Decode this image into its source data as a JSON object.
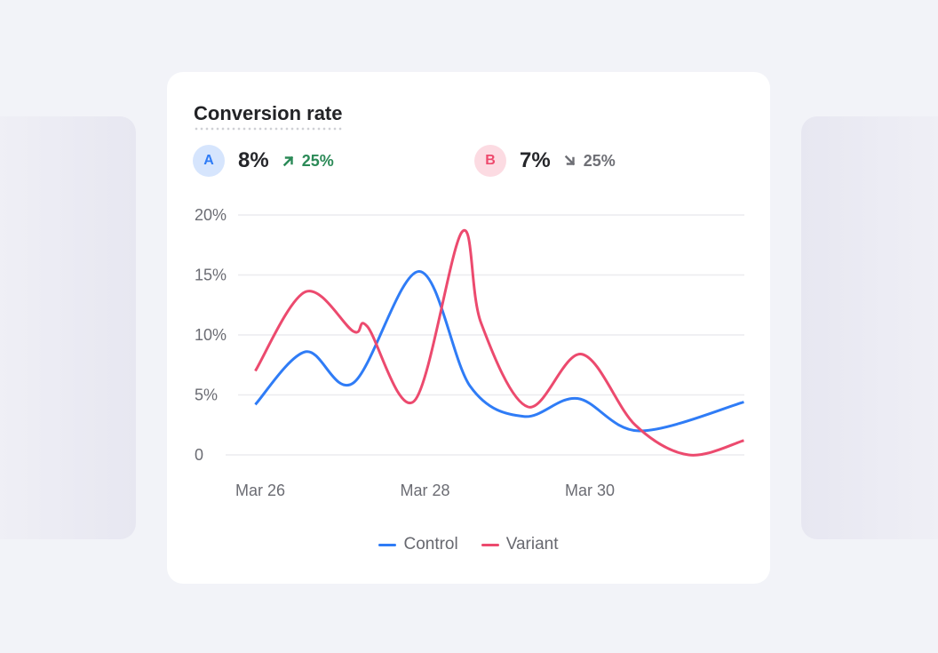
{
  "card": {
    "title": "Conversion rate",
    "metrics": [
      {
        "badge": "A",
        "value": "8%",
        "change": "25%",
        "direction": "up",
        "change_icon": "arrow-up-right-icon"
      },
      {
        "badge": "B",
        "value": "7%",
        "change": "25%",
        "direction": "down",
        "change_icon": "arrow-down-right-icon"
      }
    ]
  },
  "colors": {
    "control": "#2f7cf6",
    "variant": "#ec4a6e",
    "up": "#2b8a57",
    "down": "#6e6f75"
  },
  "chart_data": {
    "type": "line",
    "title": "Conversion rate",
    "xlabel": "",
    "ylabel": "",
    "ylim": [
      0,
      20
    ],
    "y_ticks": [
      0,
      5,
      10,
      15,
      20
    ],
    "y_tick_labels": [
      "0",
      "5%",
      "10%",
      "15%",
      "20%"
    ],
    "x_ticks": [
      0,
      2,
      4
    ],
    "x_tick_labels": [
      "Mar 26",
      "Mar 28",
      "Mar 30"
    ],
    "x_unit": "days since Mar 26",
    "grid": true,
    "legend_position": "bottom-center",
    "series": [
      {
        "name": "Control",
        "color": "#2f7cf6",
        "points": [
          [
            -0.06,
            4.2
          ],
          [
            0.55,
            8.6
          ],
          [
            1.13,
            6.0
          ],
          [
            1.93,
            15.3
          ],
          [
            2.55,
            5.7
          ],
          [
            3.2,
            3.2
          ],
          [
            3.85,
            4.7
          ],
          [
            4.6,
            2.0
          ],
          [
            5.87,
            4.4
          ]
        ]
      },
      {
        "name": "Variant",
        "color": "#ec4a6e",
        "points": [
          [
            -0.06,
            7.0
          ],
          [
            0.55,
            13.6
          ],
          [
            1.13,
            10.3
          ],
          [
            1.3,
            10.7
          ],
          [
            1.87,
            4.5
          ],
          [
            2.45,
            18.6
          ],
          [
            2.68,
            11.0
          ],
          [
            3.25,
            4.0
          ],
          [
            3.9,
            8.4
          ],
          [
            4.55,
            2.5
          ],
          [
            5.2,
            0.0
          ],
          [
            5.87,
            1.2
          ]
        ]
      }
    ]
  }
}
